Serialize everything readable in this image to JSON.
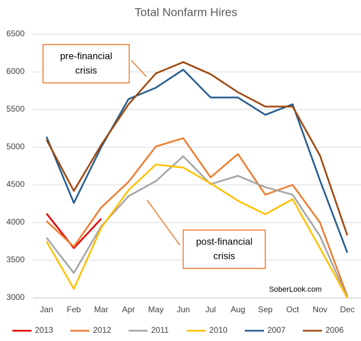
{
  "chart_data": {
    "type": "line",
    "title": "Total Nonfarm Hires",
    "categories": [
      "Jan",
      "Feb",
      "Mar",
      "Apr",
      "May",
      "Jun",
      "Jul",
      "Aug",
      "Sep",
      "Oct",
      "Nov",
      "Dec"
    ],
    "series": [
      {
        "name": "2013",
        "color": "#e00000",
        "values": [
          4120,
          3660,
          4050,
          null,
          null,
          null,
          null,
          null,
          null,
          null,
          null,
          null
        ]
      },
      {
        "name": "2012",
        "color": "#ed7d31",
        "values": [
          4020,
          3680,
          4200,
          4540,
          5010,
          5120,
          4600,
          4910,
          4370,
          4500,
          4000,
          3020
        ]
      },
      {
        "name": "2011",
        "color": "#a5a5a5",
        "values": [
          3800,
          3330,
          3950,
          4350,
          4550,
          4880,
          4510,
          4620,
          4470,
          4370,
          3820,
          3000
        ]
      },
      {
        "name": "2010",
        "color": "#ffc000",
        "values": [
          3750,
          3120,
          3930,
          4430,
          4770,
          4730,
          4520,
          4290,
          4110,
          4310,
          3660,
          3000
        ]
      },
      {
        "name": "2007",
        "color": "#255e91",
        "values": [
          5140,
          4260,
          5000,
          5640,
          5790,
          6030,
          5660,
          5660,
          5430,
          5570,
          4560,
          3600
        ]
      },
      {
        "name": "2006",
        "color": "#9e480e",
        "values": [
          5100,
          4420,
          5030,
          5570,
          5980,
          6130,
          5970,
          5730,
          5540,
          5540,
          4890,
          3830
        ]
      }
    ],
    "ylim": [
      3000,
      6500
    ],
    "yticks": [
      3000,
      3500,
      4000,
      4500,
      5000,
      5500,
      6000,
      6500
    ],
    "grid": true,
    "legend": "bottom",
    "annotations": {
      "pre": [
        "pre-financial",
        "crisis"
      ],
      "post": [
        "post-financial",
        "crisis"
      ],
      "source": "SoberLook.com"
    }
  }
}
